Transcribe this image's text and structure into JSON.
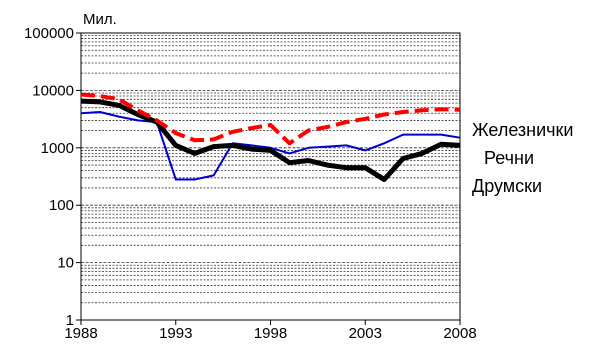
{
  "chart_data": {
    "type": "line",
    "title": "",
    "xlabel": "",
    "ylabel": "Мил.",
    "y_scale": "log",
    "ylim": [
      1,
      100000
    ],
    "xlim": [
      1988,
      2008
    ],
    "grid": "horizontal dashed at 1-9 multiples of each decade",
    "y_ticks": [
      {
        "value": 1,
        "label": "1"
      },
      {
        "value": 10,
        "label": "10"
      },
      {
        "value": 100,
        "label": "100"
      },
      {
        "value": 1000,
        "label": "1000"
      },
      {
        "value": 10000,
        "label": "10000"
      },
      {
        "value": 100000,
        "label": "100000"
      }
    ],
    "x_ticks": [
      {
        "value": 1988,
        "label": "1988"
      },
      {
        "value": 1993,
        "label": "1993"
      },
      {
        "value": 1998,
        "label": "1998"
      },
      {
        "value": 2003,
        "label": "2003"
      },
      {
        "value": 2008,
        "label": "2008"
      }
    ],
    "x": [
      1988,
      1989,
      1990,
      1991,
      1992,
      1993,
      1994,
      1995,
      1996,
      1997,
      1998,
      1999,
      2000,
      2001,
      2002,
      2003,
      2004,
      2005,
      2006,
      2007,
      2008
    ],
    "series": [
      {
        "name": "Железнички",
        "color": "#ff0000",
        "style": "dashed",
        "values": [
          8500,
          8000,
          7000,
          4500,
          3000,
          1800,
          1350,
          1400,
          1900,
          2200,
          2500,
          1200,
          2000,
          2300,
          2800,
          3200,
          3800,
          4200,
          4500,
          4700,
          4600
        ]
      },
      {
        "name": "Речни",
        "color": "#0000cc",
        "style": "solid",
        "values": [
          4000,
          4200,
          3500,
          3000,
          2800,
          280,
          280,
          330,
          1200,
          1100,
          1000,
          800,
          1000,
          1050,
          1100,
          900,
          1200,
          1700,
          1700,
          1700,
          1500
        ]
      },
      {
        "name": "Друмски",
        "color": "#000000",
        "style": "solid",
        "values": [
          6500,
          6300,
          5500,
          3800,
          2800,
          1100,
          800,
          1050,
          1100,
          950,
          900,
          550,
          600,
          500,
          450,
          450,
          280,
          650,
          800,
          1150,
          1100
        ]
      }
    ]
  }
}
